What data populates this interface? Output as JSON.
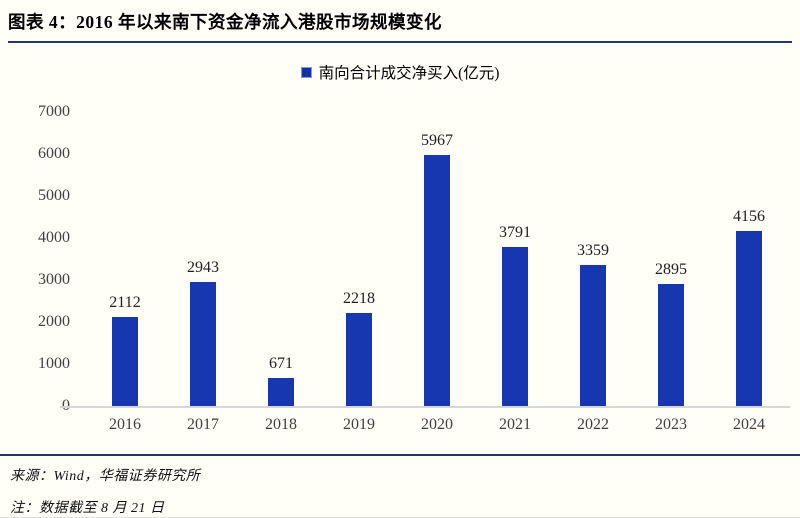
{
  "header": {
    "title": "图表 4：2016 年以来南下资金净流入港股市场规模变化"
  },
  "legend": {
    "label": "南向合计成交净买入(亿元)"
  },
  "chart_data": {
    "type": "bar",
    "title": "2016 年以来南下资金净流入港股市场规模变化",
    "categories": [
      "2016",
      "2017",
      "2018",
      "2019",
      "2020",
      "2021",
      "2022",
      "2023",
      "2024"
    ],
    "values": [
      2112,
      2943,
      671,
      2218,
      5967,
      3791,
      3359,
      2895,
      4156
    ],
    "series_name": "南向合计成交净买入(亿元)",
    "xlabel": "",
    "ylabel": "",
    "ylim": [
      0,
      7000
    ],
    "yticks": [
      0,
      1000,
      2000,
      3000,
      4000,
      5000,
      6000,
      7000
    ],
    "grid": false,
    "legend_position": "top",
    "data_labels": true
  },
  "footer": {
    "source": "来源：Wind，华福证券研究所",
    "note": "注：数据截至 8 月 21 日"
  },
  "colors": {
    "bar": "#1637B0",
    "legend_swatch": "#16309F",
    "rule_navy": "#1F3864",
    "axis_line": "#D6D6D6",
    "tick_text": "#3F3F3F"
  }
}
